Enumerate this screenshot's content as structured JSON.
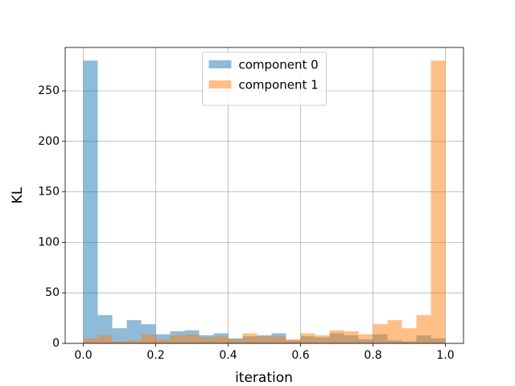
{
  "chart_data": {
    "type": "histogram",
    "xlabel": "iteration",
    "ylabel": "KL",
    "bins": [
      0,
      0.04,
      0.08,
      0.12,
      0.16,
      0.2,
      0.24,
      0.28,
      0.32,
      0.36,
      0.4,
      0.44,
      0.48,
      0.52,
      0.56,
      0.6,
      0.64,
      0.68,
      0.72,
      0.76,
      0.8,
      0.84,
      0.88,
      0.92,
      0.96,
      1
    ],
    "series": [
      {
        "name": "component 0",
        "color": "#1f77b4",
        "values": [
          280,
          28,
          15,
          23,
          19,
          9,
          12,
          13,
          8,
          10,
          5,
          7,
          8,
          10,
          3,
          7,
          6,
          10,
          8,
          4,
          9,
          3,
          2,
          8,
          5
        ]
      },
      {
        "name": "component 1",
        "color": "#ff7f0e",
        "values": [
          5,
          8,
          2,
          3,
          9,
          4,
          8,
          9,
          6,
          7,
          4,
          10,
          7,
          7,
          4,
          10,
          8,
          13,
          12,
          9,
          19,
          23,
          15,
          28,
          280
        ]
      }
    ],
    "alpha": 0.5,
    "xlim": [
      -0.05,
      1.05
    ],
    "ylim": [
      0,
      293
    ],
    "xticks": [
      {
        "value": 0,
        "label": "0.0"
      },
      0.2,
      0.4,
      0.6,
      0.8,
      {
        "value": 1,
        "label": "1.0"
      }
    ],
    "yticks": [
      0,
      50,
      100,
      150,
      200,
      250
    ],
    "grid": true,
    "legend_loc": "upper center"
  }
}
